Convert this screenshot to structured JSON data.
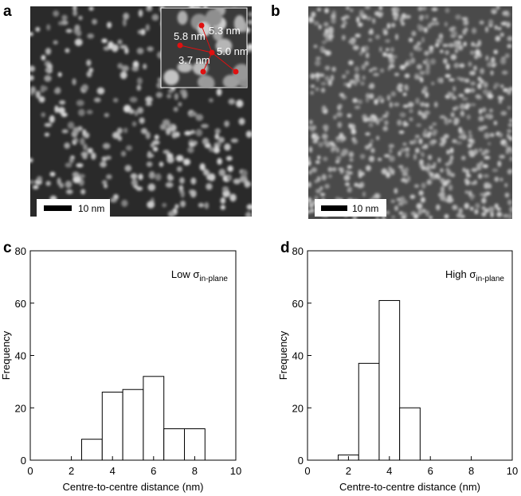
{
  "images": [
    {
      "panel_label": "a",
      "scale_bar": "10 nm",
      "inset_labels": [
        "5.3 nm",
        "5.8 nm",
        "5.0 nm",
        "3.7 nm"
      ]
    },
    {
      "panel_label": "b",
      "scale_bar": "10 nm"
    }
  ],
  "chart_data": [
    {
      "type": "histogram",
      "panel_label": "c",
      "bins": [
        2.5,
        3.5,
        4.5,
        5.5,
        6.5,
        7.5,
        8.5
      ],
      "values": [
        8,
        26,
        27,
        32,
        12,
        12
      ],
      "color": "#ffffff",
      "edge_color": "#000000",
      "xlim": [
        0,
        10
      ],
      "ylim": [
        0,
        80
      ],
      "xticks": [
        0,
        2,
        4,
        6,
        8,
        10
      ],
      "yticks": [
        0,
        20,
        40,
        60,
        80
      ],
      "xlabel": "Centre-to-centre distance (nm)",
      "ylabel": "Frequency",
      "annotation": {
        "text": "Low σ",
        "subscript": "in-plane"
      }
    },
    {
      "type": "histogram",
      "panel_label": "d",
      "bins": [
        1.5,
        2.5,
        3.5,
        4.5,
        5.5
      ],
      "values": [
        2,
        37,
        61,
        20
      ],
      "color": "#ffffff",
      "edge_color": "#000000",
      "xlim": [
        0,
        10
      ],
      "ylim": [
        0,
        80
      ],
      "xticks": [
        0,
        2,
        4,
        6,
        8,
        10
      ],
      "yticks": [
        0,
        20,
        40,
        60,
        80
      ],
      "xlabel": "Centre-to-centre distance (nm)",
      "ylabel": "Frequency",
      "annotation": {
        "text": "High σ",
        "subscript": "in-plane"
      }
    }
  ]
}
